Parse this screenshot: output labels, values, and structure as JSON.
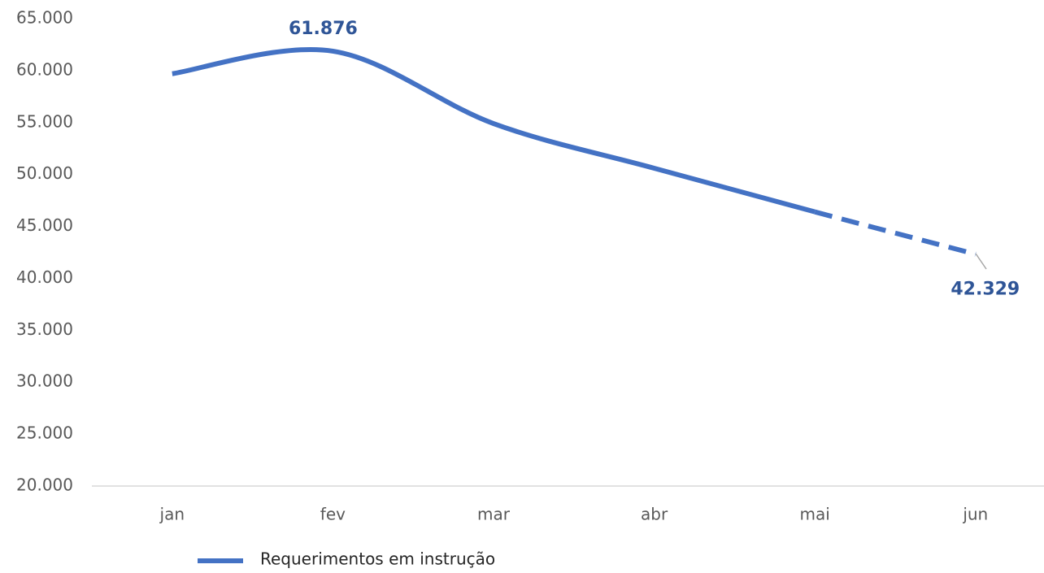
{
  "chart_data": {
    "type": "line",
    "categories": [
      "jan",
      "fev",
      "mar",
      "abr",
      "mai",
      "jun"
    ],
    "series": [
      {
        "name": "Requerimentos em instrução",
        "color": "#4472c4",
        "values": [
          59700,
          61876,
          54900,
          50600,
          46400,
          42329
        ],
        "value_labels": [
          null,
          "61.876",
          null,
          null,
          null,
          "42.329"
        ],
        "dashed_from": 4
      }
    ],
    "ylim": [
      20000,
      65000
    ],
    "yticks": [
      {
        "value": 20000,
        "label": "20.000"
      },
      {
        "value": 25000,
        "label": "25.000"
      },
      {
        "value": 30000,
        "label": "30.000"
      },
      {
        "value": 35000,
        "label": "35.000"
      },
      {
        "value": 40000,
        "label": "40.000"
      },
      {
        "value": 45000,
        "label": "45.000"
      },
      {
        "value": 50000,
        "label": "50.000"
      },
      {
        "value": 55000,
        "label": "55.000"
      },
      {
        "value": 60000,
        "label": "60.000"
      },
      {
        "value": 65000,
        "label": "65.000"
      }
    ],
    "grid": false,
    "legend": "bottom"
  }
}
